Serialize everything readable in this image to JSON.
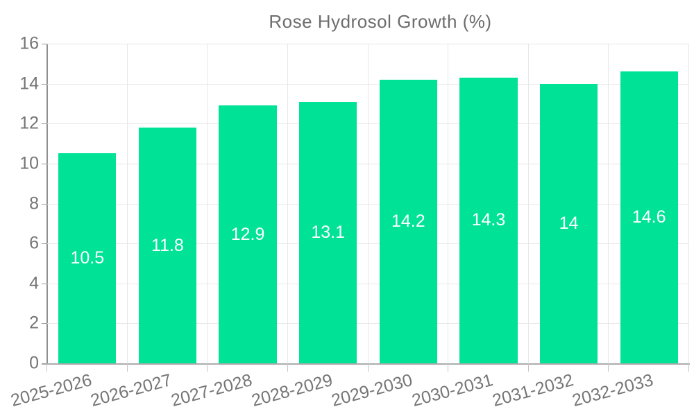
{
  "chart_data": {
    "type": "bar",
    "legend": "Rose Hydrosol Growth (%)",
    "legend_position": "top",
    "categories": [
      "2025-2026",
      "2026-2027",
      "2027-2028",
      "2028-2029",
      "2029-2030",
      "2030-2031",
      "2031-2032",
      "2032-2033"
    ],
    "values": [
      10.5,
      11.8,
      12.9,
      13.1,
      14.2,
      14.3,
      14,
      14.6
    ],
    "value_labels": [
      "10.5",
      "11.8",
      "12.9",
      "13.1",
      "14.2",
      "14.3",
      "14",
      "14.6"
    ],
    "yticks": [
      "0",
      "2",
      "4",
      "6",
      "8",
      "10",
      "12",
      "14",
      "16"
    ],
    "ylim": [
      0,
      16
    ],
    "grid": true,
    "colors": {
      "bar": "#00E396",
      "data_label": "#ffffff",
      "axis_label": "#757575",
      "gridline": "#e7e7e7",
      "axis_line": "#9a9a9a"
    },
    "xlabel": "",
    "ylabel": ""
  }
}
